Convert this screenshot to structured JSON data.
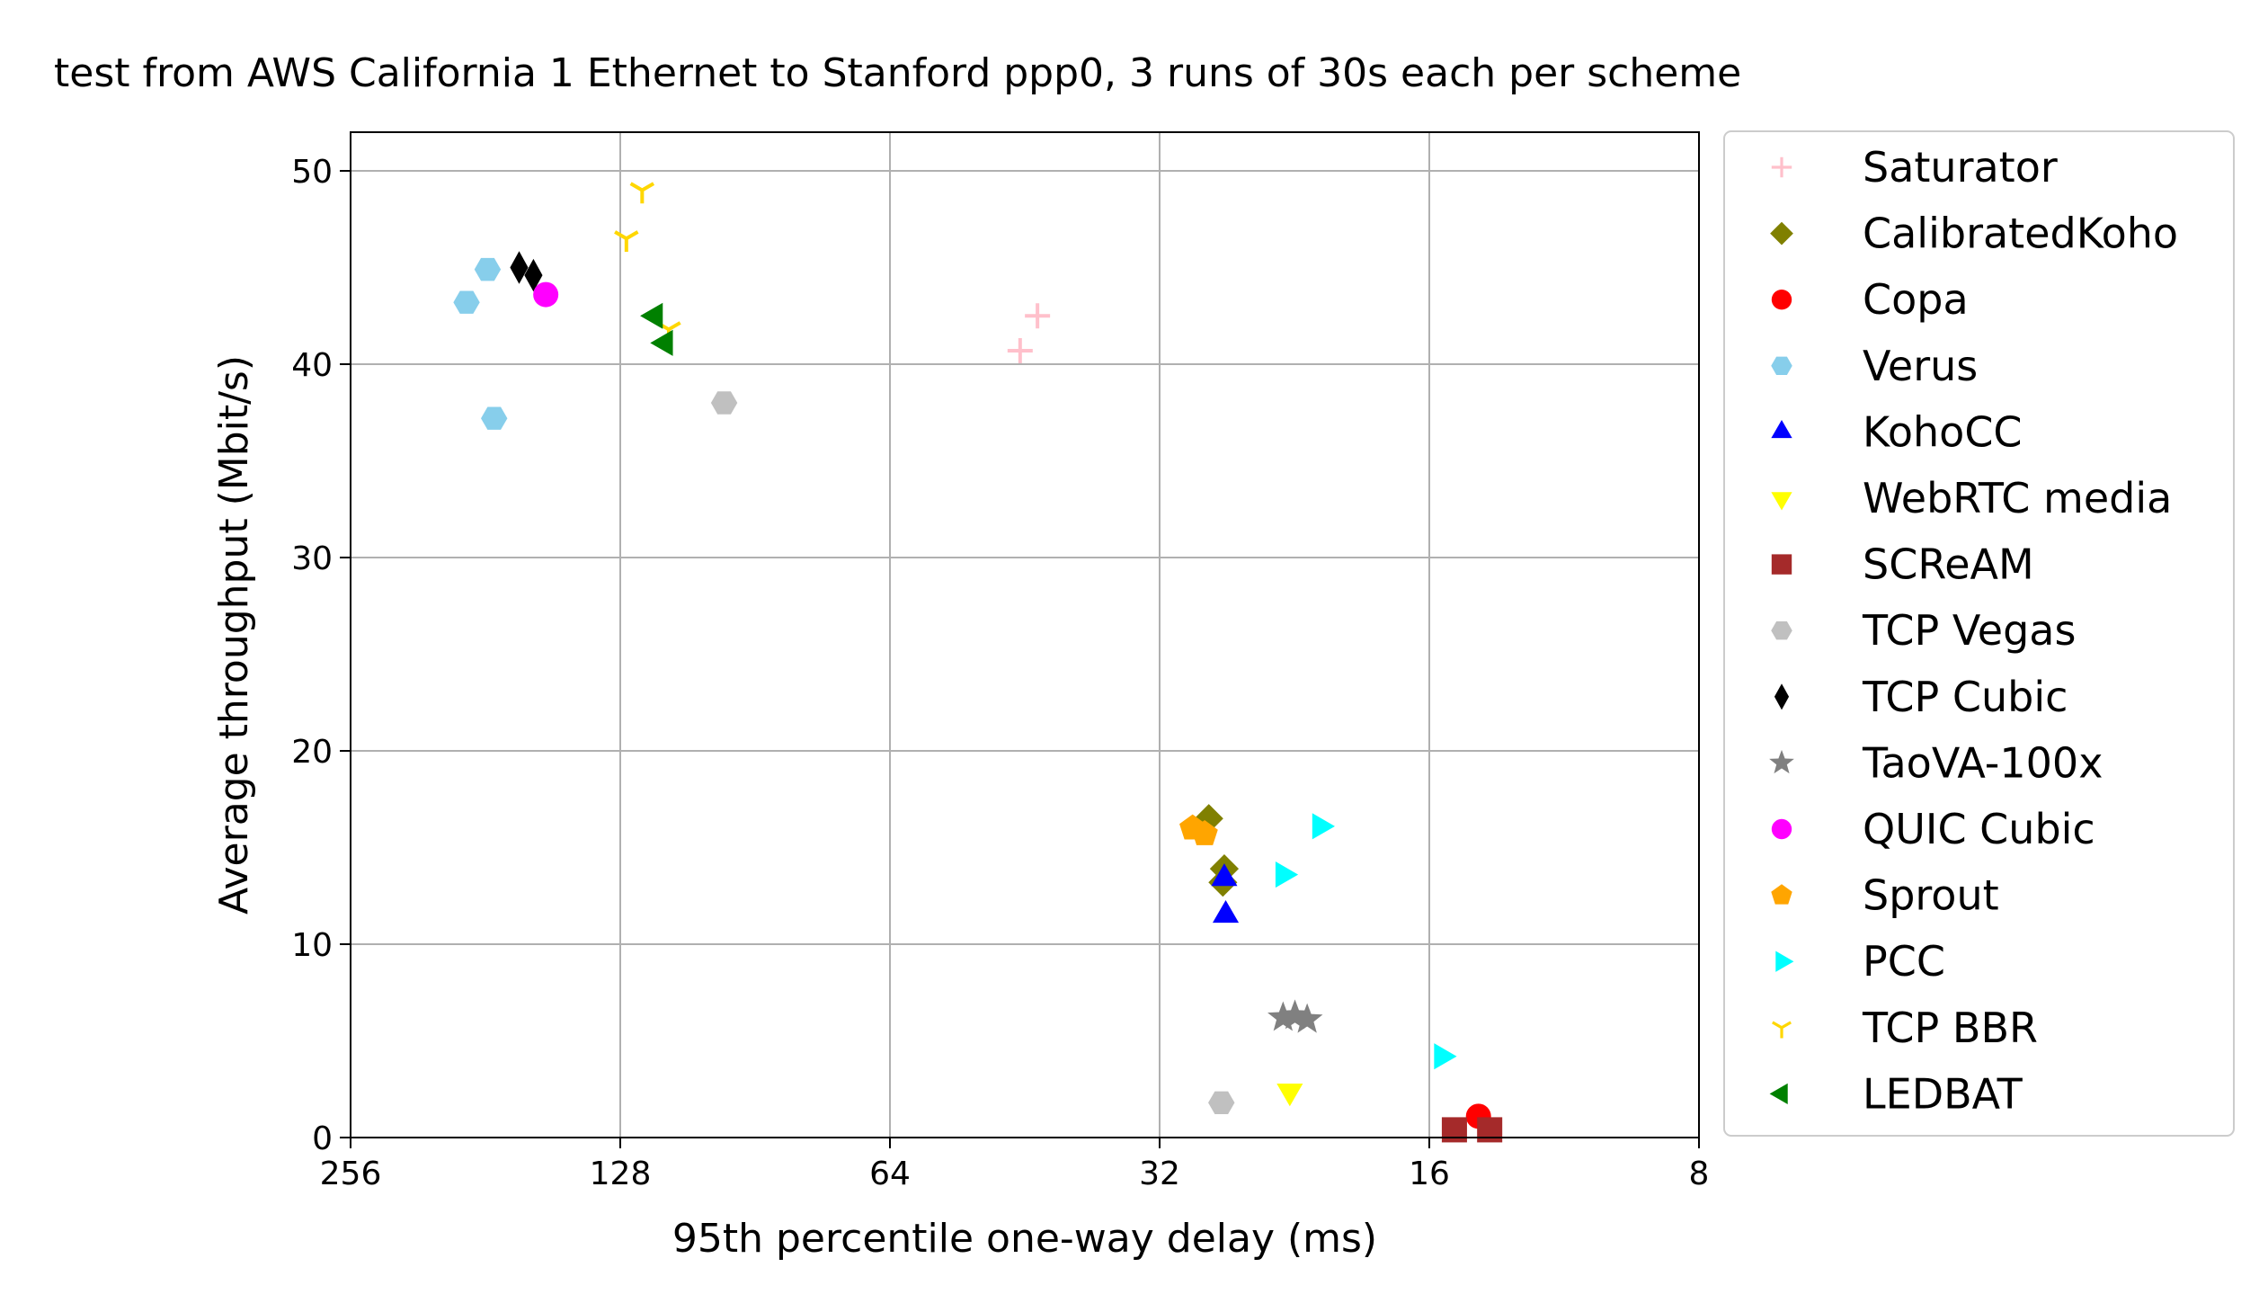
{
  "chart_data": {
    "type": "scatter",
    "title": "test from AWS California 1 Ethernet to Stanford ppp0, 3 runs of 30s each per scheme",
    "xlabel": "95th percentile one-way delay (ms)",
    "ylabel": "Average throughput (Mbit/s)",
    "xscale": "log2",
    "xlim": [
      256,
      8
    ],
    "ylim": [
      0,
      52
    ],
    "xticks": [
      256,
      128,
      64,
      32,
      16,
      8
    ],
    "xtick_labels": [
      "256",
      "128",
      "64",
      "32",
      "16",
      "8"
    ],
    "yticks": [
      0,
      10,
      20,
      30,
      40,
      50
    ],
    "ytick_labels": [
      "0",
      "10",
      "20",
      "30",
      "40",
      "50"
    ],
    "grid": true,
    "legend_position": "outside-right",
    "series": [
      {
        "name": "Saturator",
        "marker": "plus",
        "color": "#ffc0cb",
        "points": [
          [
            45.8,
            40.7
          ],
          [
            43.8,
            42.5
          ]
        ]
      },
      {
        "name": "CalibratedKoho",
        "marker": "diamond",
        "color": "#808000",
        "points": [
          [
            28.2,
            16.5
          ],
          [
            27.1,
            13.9
          ],
          [
            27.2,
            13.2
          ]
        ]
      },
      {
        "name": "Copa",
        "marker": "circle",
        "color": "#ff0000",
        "points": [
          [
            14.1,
            1.1
          ]
        ]
      },
      {
        "name": "Verus",
        "marker": "hexagon",
        "color": "#87ceeb",
        "points": [
          [
            180,
            44.9
          ],
          [
            190,
            43.2
          ],
          [
            177,
            37.2
          ]
        ]
      },
      {
        "name": "KohoCC",
        "marker": "triangle-up",
        "color": "#0000ff",
        "points": [
          [
            27.1,
            13.4
          ],
          [
            27.0,
            11.5
          ]
        ]
      },
      {
        "name": "WebRTC media",
        "marker": "triangle-down",
        "color": "#ffff00",
        "points": [
          [
            22.9,
            2.4
          ]
        ]
      },
      {
        "name": "SCReAM",
        "marker": "square",
        "color": "#a52a2a",
        "points": [
          [
            15.0,
            0.4
          ],
          [
            13.7,
            0.4
          ]
        ]
      },
      {
        "name": "TCP Vegas",
        "marker": "hexagon",
        "color": "#c0c0c0",
        "points": [
          [
            98.0,
            38.0
          ],
          [
            27.3,
            1.8
          ]
        ]
      },
      {
        "name": "TCP Cubic",
        "marker": "thin-diamond",
        "color": "#000000",
        "points": [
          [
            166,
            45.0
          ],
          [
            160,
            44.6
          ]
        ]
      },
      {
        "name": "TaoVA-100x",
        "marker": "star",
        "color": "#808080",
        "points": [
          [
            23.3,
            6.2
          ],
          [
            22.6,
            6.3
          ],
          [
            21.9,
            6.1
          ]
        ]
      },
      {
        "name": "QUIC Cubic",
        "marker": "circle",
        "color": "#ff00ff",
        "points": [
          [
            155,
            43.6
          ]
        ]
      },
      {
        "name": "Sprout",
        "marker": "pentagon",
        "color": "#ffa500",
        "points": [
          [
            29.4,
            16.0
          ],
          [
            28.5,
            15.7
          ]
        ]
      },
      {
        "name": "PCC",
        "marker": "triangle-right",
        "color": "#00ffff",
        "points": [
          [
            21.2,
            16.1
          ],
          [
            23.3,
            13.6
          ],
          [
            15.5,
            4.2
          ]
        ]
      },
      {
        "name": "TCP BBR",
        "marker": "tri-down",
        "color": "#ffd700",
        "points": [
          [
            121,
            49.0
          ],
          [
            126,
            46.5
          ],
          [
            113,
            41.8
          ]
        ]
      },
      {
        "name": "LEDBAT",
        "marker": "triangle-left",
        "color": "#008000",
        "points": [
          [
            117,
            42.5
          ],
          [
            114,
            41.1
          ]
        ]
      }
    ]
  }
}
